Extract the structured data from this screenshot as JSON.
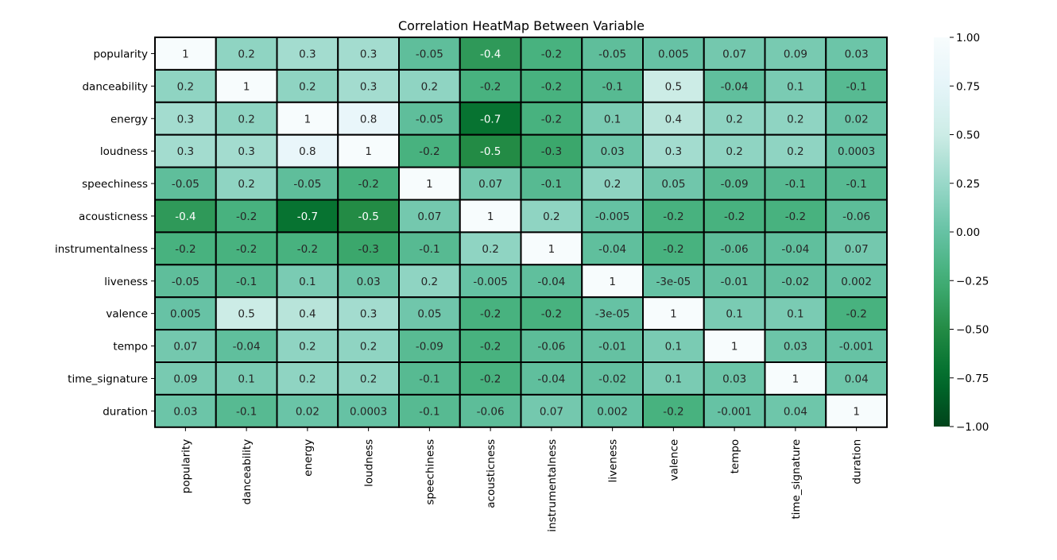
{
  "chart_data": {
    "type": "heatmap",
    "title": "Correlation HeatMap Between Variable",
    "xlabel": "",
    "ylabel": "",
    "row_labels": [
      "popularity",
      "danceability",
      "energy",
      "loudness",
      "speechiness",
      "acousticness",
      "instrumentalness",
      "liveness",
      "valence",
      "tempo",
      "time_signature",
      "duration"
    ],
    "col_labels": [
      "popularity",
      "danceability",
      "energy",
      "loudness",
      "speechiness",
      "acousticness",
      "instrumentalness",
      "liveness",
      "valence",
      "tempo",
      "time_signature",
      "duration"
    ],
    "values": [
      [
        1,
        0.2,
        0.3,
        0.3,
        -0.05,
        -0.4,
        -0.2,
        -0.05,
        0.005,
        0.07,
        0.09,
        0.03
      ],
      [
        0.2,
        1,
        0.2,
        0.3,
        0.2,
        -0.2,
        -0.2,
        -0.1,
        0.5,
        -0.04,
        0.1,
        -0.1
      ],
      [
        0.3,
        0.2,
        1,
        0.8,
        -0.05,
        -0.7,
        -0.2,
        0.1,
        0.4,
        0.2,
        0.2,
        0.02
      ],
      [
        0.3,
        0.3,
        0.8,
        1,
        -0.2,
        -0.5,
        -0.3,
        0.03,
        0.3,
        0.2,
        0.2,
        0.0003
      ],
      [
        -0.05,
        0.2,
        -0.05,
        -0.2,
        1,
        0.07,
        -0.1,
        0.2,
        0.05,
        -0.09,
        -0.1,
        -0.1
      ],
      [
        -0.4,
        -0.2,
        -0.7,
        -0.5,
        0.07,
        1,
        0.2,
        -0.005,
        -0.2,
        -0.2,
        -0.2,
        -0.06
      ],
      [
        -0.2,
        -0.2,
        -0.2,
        -0.3,
        -0.1,
        0.2,
        1,
        -0.04,
        -0.2,
        -0.06,
        -0.04,
        0.07
      ],
      [
        -0.05,
        -0.1,
        0.1,
        0.03,
        0.2,
        -0.005,
        -0.04,
        1,
        -3e-05,
        -0.01,
        -0.02,
        0.002
      ],
      [
        0.005,
        0.5,
        0.4,
        0.3,
        0.05,
        -0.2,
        -0.2,
        -3e-05,
        1,
        0.1,
        0.1,
        -0.2
      ],
      [
        0.07,
        -0.04,
        0.2,
        0.2,
        -0.09,
        -0.2,
        -0.06,
        -0.01,
        0.1,
        1,
        0.03,
        -0.001
      ],
      [
        0.09,
        0.1,
        0.2,
        0.2,
        -0.1,
        -0.2,
        -0.04,
        -0.02,
        0.1,
        0.03,
        1,
        0.04
      ],
      [
        0.03,
        -0.1,
        0.02,
        0.0003,
        -0.1,
        -0.06,
        0.07,
        0.002,
        -0.2,
        -0.001,
        0.04,
        1
      ]
    ],
    "annotations": [
      [
        "1",
        "0.2",
        "0.3",
        "0.3",
        "-0.05",
        "-0.4",
        "-0.2",
        "-0.05",
        "0.005",
        "0.07",
        "0.09",
        "0.03"
      ],
      [
        "0.2",
        "1",
        "0.2",
        "0.3",
        "0.2",
        "-0.2",
        "-0.2",
        "-0.1",
        "0.5",
        "-0.04",
        "0.1",
        "-0.1"
      ],
      [
        "0.3",
        "0.2",
        "1",
        "0.8",
        "-0.05",
        "-0.7",
        "-0.2",
        "0.1",
        "0.4",
        "0.2",
        "0.2",
        "0.02"
      ],
      [
        "0.3",
        "0.3",
        "0.8",
        "1",
        "-0.2",
        "-0.5",
        "-0.3",
        "0.03",
        "0.3",
        "0.2",
        "0.2",
        "0.0003"
      ],
      [
        "-0.05",
        "0.2",
        "-0.05",
        "-0.2",
        "1",
        "0.07",
        "-0.1",
        "0.2",
        "0.05",
        "-0.09",
        "-0.1",
        "-0.1"
      ],
      [
        "-0.4",
        "-0.2",
        "-0.7",
        "-0.5",
        "0.07",
        "1",
        "0.2",
        "-0.005",
        "-0.2",
        "-0.2",
        "-0.2",
        "-0.06"
      ],
      [
        "-0.2",
        "-0.2",
        "-0.2",
        "-0.3",
        "-0.1",
        "0.2",
        "1",
        "-0.04",
        "-0.2",
        "-0.06",
        "-0.04",
        "0.07"
      ],
      [
        "-0.05",
        "-0.1",
        "0.1",
        "0.03",
        "0.2",
        "-0.005",
        "-0.04",
        "1",
        "-3e-05",
        "-0.01",
        "-0.02",
        "0.002"
      ],
      [
        "0.005",
        "0.5",
        "0.4",
        "0.3",
        "0.05",
        "-0.2",
        "-0.2",
        "-3e-05",
        "1",
        "0.1",
        "0.1",
        "-0.2"
      ],
      [
        "0.07",
        "-0.04",
        "0.2",
        "0.2",
        "-0.09",
        "-0.2",
        "-0.06",
        "-0.01",
        "0.1",
        "1",
        "0.03",
        "-0.001"
      ],
      [
        "0.09",
        "0.1",
        "0.2",
        "0.2",
        "-0.1",
        "-0.2",
        "-0.04",
        "-0.02",
        "0.1",
        "0.03",
        "1",
        "0.04"
      ],
      [
        "0.03",
        "-0.1",
        "0.02",
        "0.0003",
        "-0.1",
        "-0.06",
        "0.07",
        "0.002",
        "-0.2",
        "-0.001",
        "0.04",
        "1"
      ]
    ],
    "vmin": -1,
    "vmax": 1,
    "colormap": "BuGn",
    "colorbar": {
      "ticks": [
        1.0,
        0.75,
        0.5,
        0.25,
        0.0,
        -0.25,
        -0.5,
        -0.75,
        -1.0
      ],
      "tick_labels": [
        "1.00",
        "0.75",
        "0.50",
        "0.25",
        "0.00",
        "−0.25",
        "−0.50",
        "−0.75",
        "−1.00"
      ],
      "position": "right"
    },
    "colors": {
      "low": "#00441b",
      "mid": "#66c2a4",
      "high": "#f7fcfd",
      "cell_border": "#000000",
      "text_on_light": "#262626",
      "text_on_dark": "#ffffff"
    },
    "grid": false
  }
}
